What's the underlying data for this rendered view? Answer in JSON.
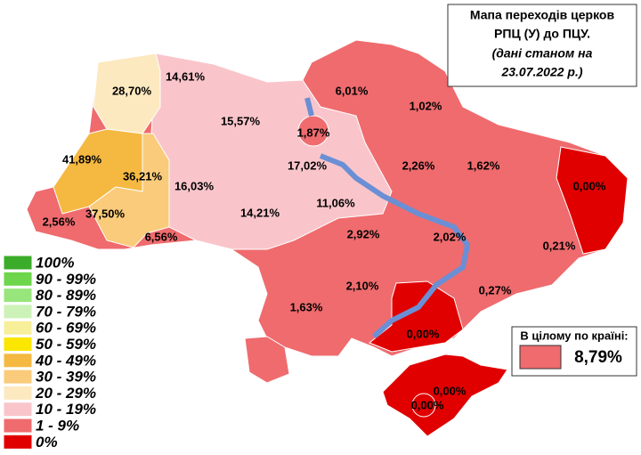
{
  "title": {
    "lines": [
      "Мапа переходів церков",
      "РПЦ (У) до ПЦУ.",
      "(дані станом на",
      "23.07.2022 р.)"
    ]
  },
  "regions": [
    {
      "label": "28,70%"
    },
    {
      "label": "14,61%"
    },
    {
      "label": "15,57%"
    },
    {
      "label": "17,02%"
    },
    {
      "label": "1,87%"
    },
    {
      "label": "6,01%"
    },
    {
      "label": "1,02%"
    },
    {
      "label": "1,62%"
    },
    {
      "label": "0,00%"
    },
    {
      "label": "2,26%"
    },
    {
      "label": "11,06%"
    },
    {
      "label": "14,21%"
    },
    {
      "label": "16,03%"
    },
    {
      "label": "41,89%"
    },
    {
      "label": "36,21%"
    },
    {
      "label": "37,50%"
    },
    {
      "label": "2,56%"
    },
    {
      "label": "6,56%"
    },
    {
      "label": "2,92%"
    },
    {
      "label": "2,02%"
    },
    {
      "label": "0,21%"
    },
    {
      "label": "2,10%"
    },
    {
      "label": "1,63%"
    },
    {
      "label": "0,27%"
    },
    {
      "label": "0,00%"
    },
    {
      "label": "0,00%"
    },
    {
      "label": "0,00%"
    }
  ],
  "legend": [
    {
      "label": "100%",
      "color": "#3bab2a"
    },
    {
      "label": "90 - 99%",
      "color": "#6dd64a"
    },
    {
      "label": "80 - 89%",
      "color": "#98e57c"
    },
    {
      "label": "70 - 79%",
      "color": "#cdf2b8"
    },
    {
      "label": "60 - 69%",
      "color": "#f7ef9a"
    },
    {
      "label": "50 - 59%",
      "color": "#fbe600"
    },
    {
      "label": "40 - 49%",
      "color": "#f5b942"
    },
    {
      "label": "30 - 39%",
      "color": "#f9cb7a"
    },
    {
      "label": "20 - 29%",
      "color": "#fde9c0"
    },
    {
      "label": "10 - 19%",
      "color": "#f9c5cb"
    },
    {
      "label": "1 - 9%",
      "color": "#ef6b6e"
    },
    {
      "label": "0%",
      "color": "#e00000"
    }
  ],
  "total": {
    "label": "В цілому по країні:",
    "value": "8,79%"
  }
}
